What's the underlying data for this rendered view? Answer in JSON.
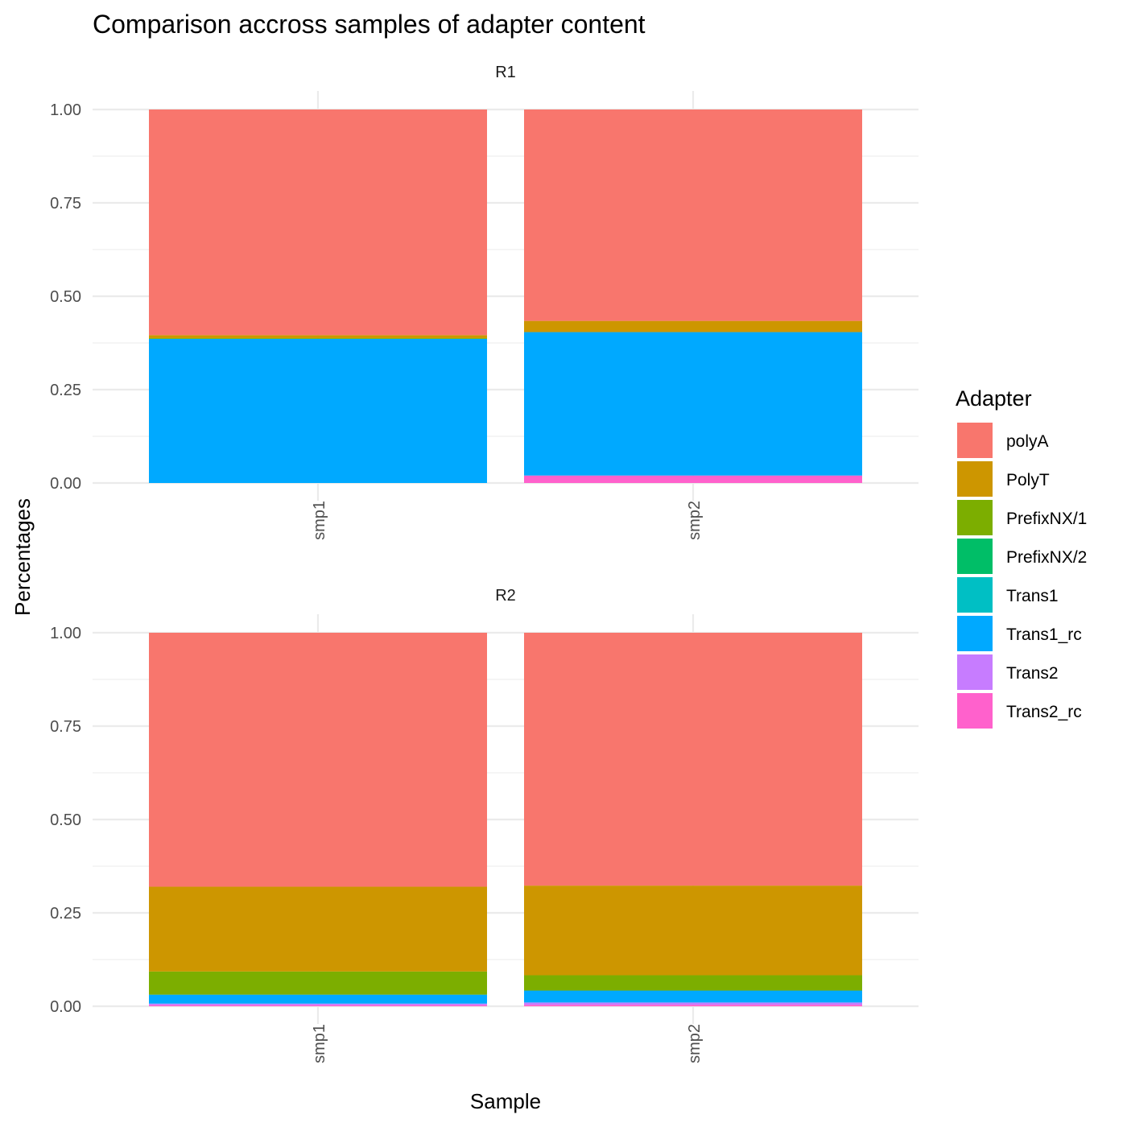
{
  "chart_data": {
    "type": "bar",
    "stacked": true,
    "title": "Comparison accross samples of adapter content",
    "xlabel": "Sample",
    "ylabel": "Percentages",
    "ylim": [
      0,
      1
    ],
    "yticks": [
      "0.00",
      "0.25",
      "0.50",
      "0.75",
      "1.00"
    ],
    "categories": [
      "smp1",
      "smp2"
    ],
    "legend": {
      "title": "Adapter",
      "position": "right",
      "items": [
        {
          "name": "polyA",
          "color": "#F8766D"
        },
        {
          "name": "PolyT",
          "color": "#CD9600"
        },
        {
          "name": "PrefixNX/1",
          "color": "#7CAE00"
        },
        {
          "name": "PrefixNX/2",
          "color": "#00BE67"
        },
        {
          "name": "Trans1",
          "color": "#00BFC4"
        },
        {
          "name": "Trans1_rc",
          "color": "#00A9FF"
        },
        {
          "name": "Trans2",
          "color": "#C77CFF"
        },
        {
          "name": "Trans2_rc",
          "color": "#FF61CC"
        }
      ]
    },
    "panels": [
      {
        "label": "R1",
        "series": [
          {
            "name": "polyA",
            "values": [
              0.604,
              0.566
            ]
          },
          {
            "name": "PolyT",
            "values": [
              0.008,
              0.03
            ]
          },
          {
            "name": "PrefixNX/1",
            "values": [
              0.002,
              0.0
            ]
          },
          {
            "name": "PrefixNX/2",
            "values": [
              0.0,
              0.0
            ]
          },
          {
            "name": "Trans1",
            "values": [
              0.0,
              0.0
            ]
          },
          {
            "name": "Trans1_rc",
            "values": [
              0.386,
              0.384
            ]
          },
          {
            "name": "Trans2",
            "values": [
              0.0,
              0.0
            ]
          },
          {
            "name": "Trans2_rc",
            "values": [
              0.0,
              0.02
            ]
          }
        ]
      },
      {
        "label": "R2",
        "series": [
          {
            "name": "polyA",
            "values": [
              0.68,
              0.677
            ]
          },
          {
            "name": "PolyT",
            "values": [
              0.227,
              0.24
            ]
          },
          {
            "name": "PrefixNX/1",
            "values": [
              0.062,
              0.041
            ]
          },
          {
            "name": "PrefixNX/2",
            "values": [
              0.0,
              0.0
            ]
          },
          {
            "name": "Trans1",
            "values": [
              0.0,
              0.0
            ]
          },
          {
            "name": "Trans1_rc",
            "values": [
              0.024,
              0.032
            ]
          },
          {
            "name": "Trans2",
            "values": [
              0.004,
              0.006
            ]
          },
          {
            "name": "Trans2_rc",
            "values": [
              0.003,
              0.004
            ]
          }
        ]
      }
    ]
  }
}
